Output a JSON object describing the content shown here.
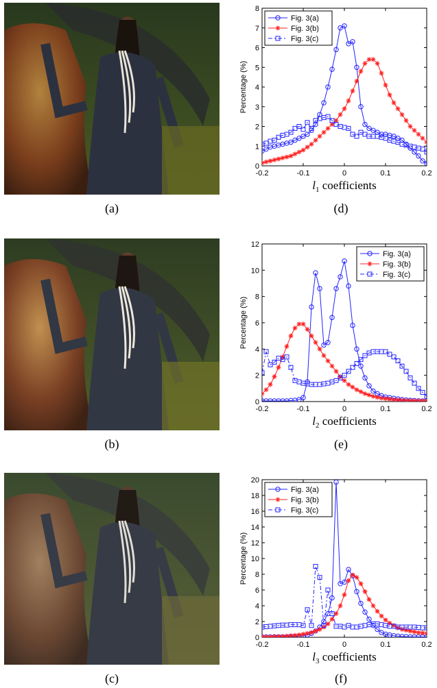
{
  "captions": [
    "(a)",
    "(b)",
    "(c)",
    "(d)",
    "(e)",
    "(f)"
  ],
  "legend_labels": [
    "Fig. 3(a)",
    "Fig. 3(b)",
    "Fig. 3(c)"
  ],
  "colors": {
    "blue": "#2121ff",
    "red": "#ff1f1f"
  },
  "chart_data": [
    {
      "type": "line",
      "ylabel": "Percentage (%)",
      "xlabel_sym": "l",
      "xlabel_sub": "1",
      "xlabel_rest": " coefficients",
      "xlim": [
        -0.2,
        0.2
      ],
      "ylim": [
        0,
        8
      ],
      "xticks": [
        "-0.2",
        "-0.1",
        "0",
        "0.1",
        "0.2"
      ],
      "yticks": [
        "0",
        "1",
        "2",
        "3",
        "4",
        "5",
        "6",
        "7",
        "8"
      ],
      "legend_position": "top-left",
      "series": [
        {
          "name": "Fig. 3(a)",
          "x": [
            -0.2,
            -0.19,
            -0.18,
            -0.17,
            -0.16,
            -0.15,
            -0.14,
            -0.13,
            -0.12,
            -0.11,
            -0.1,
            -0.09,
            -0.08,
            -0.07,
            -0.06,
            -0.05,
            -0.04,
            -0.03,
            -0.02,
            -0.01,
            0,
            0.01,
            0.02,
            0.03,
            0.04,
            0.05,
            0.06,
            0.07,
            0.08,
            0.09,
            0.1,
            0.11,
            0.12,
            0.13,
            0.14,
            0.15,
            0.16,
            0.17,
            0.18,
            0.19,
            0.2
          ],
          "y": [
            0.75,
            0.85,
            0.95,
            1.0,
            1.05,
            1.1,
            1.15,
            1.2,
            1.3,
            1.4,
            1.5,
            1.6,
            1.8,
            2.1,
            2.6,
            3.2,
            4.0,
            4.9,
            5.9,
            7.0,
            7.1,
            6.2,
            6.3,
            5.0,
            3.0,
            2.1,
            1.9,
            1.8,
            1.7,
            1.6,
            1.6,
            1.55,
            1.5,
            1.4,
            1.3,
            1.1,
            0.9,
            0.7,
            0.5,
            0.25,
            0.12
          ]
        },
        {
          "name": "Fig. 3(b)",
          "x": [
            -0.2,
            -0.19,
            -0.18,
            -0.17,
            -0.16,
            -0.15,
            -0.14,
            -0.13,
            -0.12,
            -0.11,
            -0.1,
            -0.09,
            -0.08,
            -0.07,
            -0.06,
            -0.05,
            -0.04,
            -0.03,
            -0.02,
            -0.01,
            0,
            0.01,
            0.02,
            0.03,
            0.04,
            0.05,
            0.06,
            0.07,
            0.08,
            0.09,
            0.1,
            0.11,
            0.12,
            0.13,
            0.14,
            0.15,
            0.16,
            0.17,
            0.18,
            0.19,
            0.2
          ],
          "y": [
            0.15,
            0.2,
            0.25,
            0.3,
            0.35,
            0.4,
            0.45,
            0.5,
            0.6,
            0.7,
            0.8,
            0.95,
            1.1,
            1.3,
            1.5,
            1.7,
            1.9,
            2.1,
            2.3,
            2.6,
            2.9,
            3.3,
            3.8,
            4.3,
            4.8,
            5.2,
            5.4,
            5.4,
            5.2,
            4.7,
            4.1,
            3.6,
            3.2,
            2.9,
            2.6,
            2.3,
            2.0,
            1.8,
            1.6,
            1.4,
            1.2
          ]
        },
        {
          "name": "Fig. 3(c)",
          "x": [
            -0.2,
            -0.19,
            -0.18,
            -0.17,
            -0.16,
            -0.15,
            -0.14,
            -0.13,
            -0.12,
            -0.11,
            -0.1,
            -0.09,
            -0.08,
            -0.07,
            -0.06,
            -0.05,
            -0.04,
            -0.03,
            -0.02,
            -0.01,
            0,
            0.01,
            0.02,
            0.03,
            0.04,
            0.05,
            0.06,
            0.07,
            0.08,
            0.09,
            0.1,
            0.11,
            0.12,
            0.13,
            0.14,
            0.15,
            0.16,
            0.17,
            0.18,
            0.19,
            0.2
          ],
          "y": [
            1.1,
            1.15,
            1.25,
            1.3,
            1.45,
            1.55,
            1.6,
            1.7,
            1.9,
            2.0,
            1.85,
            2.2,
            1.9,
            2.3,
            2.4,
            2.45,
            2.5,
            2.3,
            2.1,
            2.0,
            1.95,
            1.9,
            1.6,
            1.5,
            1.7,
            1.6,
            1.5,
            1.5,
            1.5,
            1.45,
            1.4,
            1.3,
            1.25,
            1.2,
            1.1,
            1.05,
            1.0,
            0.95,
            0.9,
            0.85,
            0.7
          ]
        }
      ]
    },
    {
      "type": "line",
      "ylabel": "Percentage (%)",
      "xlabel_sym": "l",
      "xlabel_sub": "2",
      "xlabel_rest": " coefficients",
      "xlim": [
        -0.2,
        0.2
      ],
      "ylim": [
        0,
        12
      ],
      "xticks": [
        "-0.2",
        "-0.1",
        "0",
        "0.1",
        "0.2"
      ],
      "yticks": [
        "0",
        "2",
        "4",
        "6",
        "8",
        "10",
        "12"
      ],
      "legend_position": "top-right",
      "series": [
        {
          "name": "Fig. 3(a)",
          "x": [
            -0.2,
            -0.19,
            -0.18,
            -0.17,
            -0.16,
            -0.15,
            -0.14,
            -0.13,
            -0.12,
            -0.11,
            -0.1,
            -0.09,
            -0.08,
            -0.07,
            -0.06,
            -0.05,
            -0.04,
            -0.03,
            -0.02,
            -0.01,
            0,
            0.01,
            0.02,
            0.03,
            0.04,
            0.05,
            0.06,
            0.07,
            0.08,
            0.09,
            0.1,
            0.11,
            0.12,
            0.13,
            0.14,
            0.15,
            0.16,
            0.17,
            0.18,
            0.19,
            0.2
          ],
          "y": [
            0.05,
            0.05,
            0.05,
            0.05,
            0.05,
            0.05,
            0.05,
            0.08,
            0.1,
            0.15,
            0.3,
            1.5,
            7.2,
            9.8,
            8.6,
            4.3,
            4.5,
            6.4,
            8.6,
            9.5,
            10.7,
            8.8,
            5.8,
            4.0,
            2.7,
            1.8,
            1.2,
            0.8,
            0.6,
            0.45,
            0.35,
            0.3,
            0.25,
            0.2,
            0.15,
            0.12,
            0.1,
            0.08,
            0.06,
            0.05,
            0.05
          ]
        },
        {
          "name": "Fig. 3(b)",
          "x": [
            -0.2,
            -0.19,
            -0.18,
            -0.17,
            -0.16,
            -0.15,
            -0.14,
            -0.13,
            -0.12,
            -0.11,
            -0.1,
            -0.09,
            -0.08,
            -0.07,
            -0.06,
            -0.05,
            -0.04,
            -0.03,
            -0.02,
            -0.01,
            0,
            0.01,
            0.02,
            0.03,
            0.04,
            0.05,
            0.06,
            0.07,
            0.08,
            0.09,
            0.1,
            0.11,
            0.12,
            0.13,
            0.14,
            0.15,
            0.16,
            0.17,
            0.18,
            0.19,
            0.2
          ],
          "y": [
            0.6,
            0.9,
            1.3,
            1.9,
            2.6,
            3.4,
            4.2,
            5.0,
            5.6,
            5.9,
            5.9,
            5.5,
            5.0,
            4.5,
            4.0,
            3.5,
            3.1,
            2.7,
            2.3,
            1.9,
            1.6,
            1.3,
            1.1,
            0.9,
            0.75,
            0.6,
            0.5,
            0.4,
            0.32,
            0.26,
            0.22,
            0.18,
            0.15,
            0.12,
            0.1,
            0.08,
            0.07,
            0.06,
            0.05,
            0.05,
            0.05
          ]
        },
        {
          "name": "Fig. 3(c)",
          "x": [
            -0.2,
            -0.19,
            -0.18,
            -0.17,
            -0.16,
            -0.15,
            -0.14,
            -0.13,
            -0.12,
            -0.11,
            -0.1,
            -0.09,
            -0.08,
            -0.07,
            -0.06,
            -0.05,
            -0.04,
            -0.03,
            -0.02,
            -0.01,
            0,
            0.01,
            0.02,
            0.03,
            0.04,
            0.05,
            0.06,
            0.07,
            0.08,
            0.09,
            0.1,
            0.11,
            0.12,
            0.13,
            0.14,
            0.15,
            0.16,
            0.17,
            0.18,
            0.19,
            0.2
          ],
          "y": [
            2.2,
            3.8,
            2.8,
            3.0,
            3.3,
            3.2,
            3.4,
            2.6,
            1.6,
            1.5,
            1.4,
            1.35,
            1.3,
            1.3,
            1.3,
            1.35,
            1.4,
            1.5,
            1.6,
            1.8,
            2.0,
            2.3,
            2.6,
            2.9,
            3.2,
            3.5,
            3.7,
            3.8,
            3.8,
            3.8,
            3.8,
            3.6,
            3.4,
            3.1,
            2.7,
            2.3,
            1.8,
            1.4,
            1.0,
            0.7,
            0.4
          ]
        }
      ]
    },
    {
      "type": "line",
      "ylabel": "Percentage (%)",
      "xlabel_sym": "l",
      "xlabel_sub": "3",
      "xlabel_rest": " coefficients",
      "xlim": [
        -0.2,
        0.2
      ],
      "ylim": [
        0,
        20
      ],
      "xticks": [
        "-0.2",
        "-0.1",
        "0",
        "0.1",
        "0.2"
      ],
      "yticks": [
        "0",
        "2",
        "4",
        "6",
        "8",
        "10",
        "12",
        "14",
        "16",
        "18",
        "20"
      ],
      "legend_position": "top-left",
      "series": [
        {
          "name": "Fig. 3(a)",
          "x": [
            -0.2,
            -0.19,
            -0.18,
            -0.17,
            -0.16,
            -0.15,
            -0.14,
            -0.13,
            -0.12,
            -0.11,
            -0.1,
            -0.09,
            -0.08,
            -0.07,
            -0.06,
            -0.05,
            -0.04,
            -0.03,
            -0.02,
            -0.01,
            0,
            0.01,
            0.02,
            0.03,
            0.04,
            0.05,
            0.06,
            0.07,
            0.08,
            0.09,
            0.1,
            0.11,
            0.12,
            0.13,
            0.14,
            0.15,
            0.16,
            0.17,
            0.18,
            0.19,
            0.2
          ],
          "y": [
            0.05,
            0.05,
            0.05,
            0.05,
            0.05,
            0.05,
            0.05,
            0.1,
            0.1,
            0.15,
            0.2,
            0.3,
            0.5,
            0.8,
            1.3,
            2.0,
            3.0,
            5.0,
            19.7,
            6.8,
            7.0,
            8.6,
            7.8,
            5.8,
            4.3,
            3.2,
            2.3,
            1.5,
            1.0,
            0.6,
            0.4,
            0.3,
            0.2,
            0.15,
            0.1,
            0.08,
            0.06,
            0.05,
            0.05,
            0.05,
            0.05
          ]
        },
        {
          "name": "Fig. 3(b)",
          "x": [
            -0.2,
            -0.19,
            -0.18,
            -0.17,
            -0.16,
            -0.15,
            -0.14,
            -0.13,
            -0.12,
            -0.11,
            -0.1,
            -0.09,
            -0.08,
            -0.07,
            -0.06,
            -0.05,
            -0.04,
            -0.03,
            -0.02,
            -0.01,
            0,
            0.01,
            0.02,
            0.03,
            0.04,
            0.05,
            0.06,
            0.07,
            0.08,
            0.09,
            0.1,
            0.11,
            0.12,
            0.13,
            0.14,
            0.15,
            0.16,
            0.17,
            0.18,
            0.19,
            0.2
          ],
          "y": [
            0.05,
            0.05,
            0.05,
            0.1,
            0.1,
            0.1,
            0.15,
            0.2,
            0.25,
            0.3,
            0.4,
            0.5,
            0.6,
            0.8,
            1.0,
            1.3,
            1.7,
            2.3,
            3.0,
            4.0,
            5.4,
            7.2,
            7.9,
            7.6,
            6.8,
            5.8,
            4.8,
            4.0,
            3.3,
            2.7,
            2.2,
            1.8,
            1.5,
            1.2,
            1.0,
            0.9,
            0.8,
            0.7,
            0.6,
            0.55,
            0.5
          ]
        },
        {
          "name": "Fig. 3(c)",
          "x": [
            -0.2,
            -0.19,
            -0.18,
            -0.17,
            -0.16,
            -0.15,
            -0.14,
            -0.13,
            -0.12,
            -0.11,
            -0.1,
            -0.09,
            -0.08,
            -0.07,
            -0.06,
            -0.05,
            -0.04,
            -0.03,
            -0.02,
            -0.01,
            0,
            0.01,
            0.02,
            0.03,
            0.04,
            0.05,
            0.06,
            0.07,
            0.08,
            0.09,
            0.1,
            0.11,
            0.12,
            0.13,
            0.14,
            0.15,
            0.16,
            0.17,
            0.18,
            0.19,
            0.2
          ],
          "y": [
            1.3,
            1.35,
            1.4,
            1.45,
            1.5,
            1.55,
            1.55,
            1.6,
            1.6,
            1.6,
            1.5,
            3.5,
            1.5,
            9.0,
            7.6,
            1.5,
            6.0,
            3.0,
            1.4,
            1.4,
            1.3,
            1.5,
            1.3,
            1.3,
            1.4,
            1.5,
            1.6,
            1.7,
            1.7,
            1.6,
            1.5,
            1.4,
            1.4,
            1.3,
            1.3,
            1.3,
            1.3,
            1.3,
            1.25,
            1.2,
            1.2
          ]
        }
      ]
    }
  ]
}
